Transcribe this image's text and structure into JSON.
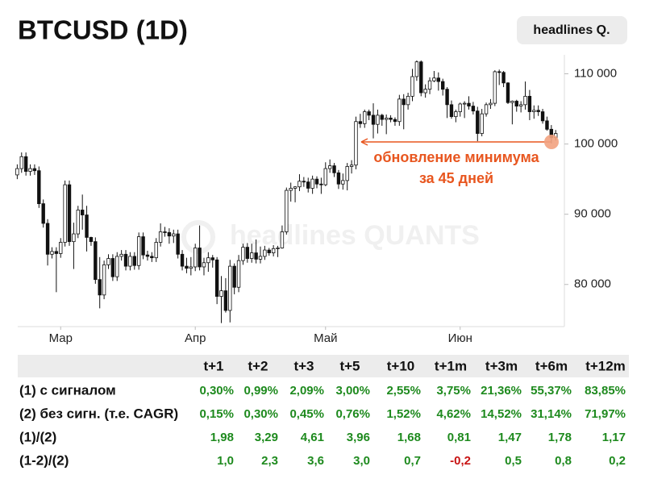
{
  "chart_data": {
    "type": "candlestick",
    "title": "BTCUSD (1D)",
    "badge": "headlines Q.",
    "watermark": "headlines QUANTS",
    "annotation": [
      "обновление минимума",
      "за 45 дней"
    ],
    "annotation_color": "#e8561f",
    "up_color": "#ffffff",
    "down_color": "#111111",
    "xlim": [
      -1,
      126
    ],
    "xticks": [
      {
        "value": 10,
        "label": "Мар"
      },
      {
        "value": 41,
        "label": "Апр"
      },
      {
        "value": 71,
        "label": "Май"
      },
      {
        "value": 102,
        "label": "Июн"
      }
    ],
    "ylim": [
      74000,
      112700
    ],
    "yticks": [
      {
        "value": 80000,
        "label": "80 000"
      },
      {
        "value": 90000,
        "label": "90 000"
      },
      {
        "value": 100000,
        "label": "100 000"
      },
      {
        "value": 110000,
        "label": "110 000"
      }
    ],
    "candles": [
      [
        95600,
        97100,
        95000,
        96500
      ],
      [
        96500,
        98800,
        95900,
        98200
      ],
      [
        98200,
        98800,
        95500,
        96100
      ],
      [
        96100,
        97100,
        95500,
        96500
      ],
      [
        96500,
        97100,
        95600,
        96200
      ],
      [
        96200,
        96800,
        90900,
        91500
      ],
      [
        91500,
        92100,
        88100,
        88700
      ],
      [
        88700,
        89300,
        82700,
        84300
      ],
      [
        84300,
        85300,
        83700,
        84700
      ],
      [
        84700,
        85300,
        78900,
        84400
      ],
      [
        84400,
        86600,
        83800,
        86000
      ],
      [
        86000,
        94800,
        85400,
        94200
      ],
      [
        94200,
        94800,
        85500,
        86100
      ],
      [
        86100,
        88800,
        82200,
        87200
      ],
      [
        87200,
        91200,
        86600,
        90600
      ],
      [
        90600,
        92800,
        87800,
        89900
      ],
      [
        89900,
        91200,
        84700,
        86700
      ],
      [
        86700,
        86800,
        85500,
        86100
      ],
      [
        86100,
        86700,
        80100,
        80700
      ],
      [
        80700,
        83900,
        76600,
        78500
      ],
      [
        78500,
        83400,
        77900,
        82800
      ],
      [
        82800,
        84300,
        82200,
        83700
      ],
      [
        83700,
        84300,
        80500,
        81100
      ],
      [
        81100,
        84600,
        80500,
        84000
      ],
      [
        84000,
        84900,
        83400,
        84300
      ],
      [
        84300,
        84900,
        82000,
        82600
      ],
      [
        82600,
        84600,
        82000,
        84000
      ],
      [
        84000,
        84600,
        82100,
        82700
      ],
      [
        82700,
        87400,
        82100,
        86800
      ],
      [
        86800,
        87400,
        83600,
        84200
      ],
      [
        84200,
        84800,
        83400,
        84000
      ],
      [
        84000,
        84600,
        83200,
        83800
      ],
      [
        83800,
        86600,
        83200,
        86000
      ],
      [
        86000,
        88700,
        85400,
        87500
      ],
      [
        87500,
        88200,
        86800,
        87400
      ],
      [
        87400,
        88000,
        85800,
        86900
      ],
      [
        86900,
        87800,
        85900,
        87200
      ],
      [
        87200,
        87800,
        83700,
        84300
      ],
      [
        84300,
        84900,
        82000,
        82600
      ],
      [
        82600,
        83800,
        81600,
        82300
      ],
      [
        82300,
        83900,
        81300,
        82500
      ],
      [
        82500,
        85800,
        81900,
        85200
      ],
      [
        85200,
        88400,
        82000,
        82500
      ],
      [
        82500,
        83800,
        81300,
        83100
      ],
      [
        83100,
        84600,
        81800,
        83800
      ],
      [
        83800,
        84200,
        82400,
        83500
      ],
      [
        83500,
        83900,
        77200,
        78300
      ],
      [
        78300,
        81200,
        74500,
        79100
      ],
      [
        79100,
        80900,
        76000,
        76300
      ],
      [
        76300,
        83500,
        74600,
        82600
      ],
      [
        82600,
        83000,
        78600,
        79600
      ],
      [
        79600,
        84200,
        78900,
        83400
      ],
      [
        83400,
        85800,
        82800,
        85300
      ],
      [
        85300,
        85900,
        83100,
        83700
      ],
      [
        83700,
        85800,
        83100,
        84500
      ],
      [
        84500,
        86400,
        83000,
        83600
      ],
      [
        83600,
        85400,
        83000,
        84000
      ],
      [
        84000,
        85500,
        83500,
        84900
      ],
      [
        84900,
        85200,
        84100,
        84500
      ],
      [
        84500,
        85600,
        84000,
        85100
      ],
      [
        85100,
        85500,
        83900,
        85200
      ],
      [
        85200,
        88400,
        85100,
        87500
      ],
      [
        87500,
        93800,
        87100,
        93400
      ],
      [
        93400,
        94500,
        91800,
        93700
      ],
      [
        93700,
        94000,
        91700,
        93900
      ],
      [
        93900,
        95700,
        93300,
        94700
      ],
      [
        94700,
        95300,
        93900,
        94600
      ],
      [
        94600,
        95200,
        93100,
        93700
      ],
      [
        93700,
        95500,
        92900,
        95000
      ],
      [
        95000,
        95400,
        93700,
        94300
      ],
      [
        94300,
        95200,
        92900,
        94200
      ],
      [
        94200,
        97400,
        94000,
        96500
      ],
      [
        96500,
        97800,
        95900,
        96900
      ],
      [
        96900,
        97300,
        95300,
        95900
      ],
      [
        95900,
        96300,
        93600,
        94300
      ],
      [
        94300,
        95800,
        93500,
        94800
      ],
      [
        94800,
        97300,
        93400,
        96800
      ],
      [
        96800,
        97700,
        95800,
        97000
      ],
      [
        97000,
        103900,
        96400,
        103200
      ],
      [
        103200,
        104300,
        102300,
        102900
      ],
      [
        102900,
        104900,
        102300,
        104600
      ],
      [
        104600,
        104900,
        103400,
        104100
      ],
      [
        104100,
        105800,
        100800,
        102800
      ],
      [
        102800,
        104900,
        101500,
        104100
      ],
      [
        104100,
        104300,
        102600,
        103500
      ],
      [
        103500,
        104200,
        101400,
        103700
      ],
      [
        103700,
        104100,
        103100,
        103500
      ],
      [
        103500,
        103800,
        102600,
        103200
      ],
      [
        103200,
        107000,
        102600,
        106400
      ],
      [
        106400,
        107100,
        102100,
        105600
      ],
      [
        105600,
        107300,
        104900,
        106800
      ],
      [
        106800,
        110700,
        106100,
        109600
      ],
      [
        109600,
        111900,
        109000,
        111700
      ],
      [
        111700,
        111900,
        106800,
        107300
      ],
      [
        107300,
        108500,
        106600,
        107800
      ],
      [
        107800,
        109500,
        107100,
        109000
      ],
      [
        109000,
        110400,
        108800,
        109400
      ],
      [
        109400,
        110200,
        107600,
        108900
      ],
      [
        108900,
        109300,
        106900,
        107800
      ],
      [
        107800,
        108100,
        103700,
        105600
      ],
      [
        105600,
        106200,
        103600,
        103900
      ],
      [
        103900,
        104900,
        103100,
        104600
      ],
      [
        104600,
        105900,
        103900,
        105700
      ],
      [
        105700,
        106100,
        103700,
        105800
      ],
      [
        105800,
        106800,
        104900,
        105400
      ],
      [
        105400,
        106000,
        104200,
        104700
      ],
      [
        104700,
        105300,
        100400,
        101500
      ],
      [
        101500,
        105000,
        101100,
        104300
      ],
      [
        104300,
        105900,
        103900,
        105600
      ],
      [
        105600,
        106400,
        105000,
        105800
      ],
      [
        105800,
        110500,
        105400,
        110300
      ],
      [
        110300,
        110600,
        108400,
        110200
      ],
      [
        110200,
        110400,
        108100,
        108700
      ],
      [
        108700,
        108800,
        105700,
        105900
      ],
      [
        105900,
        106200,
        102800,
        106100
      ],
      [
        106100,
        106300,
        104600,
        105400
      ],
      [
        105400,
        106100,
        104500,
        105600
      ],
      [
        105600,
        108900,
        104900,
        106800
      ],
      [
        106800,
        107700,
        103400,
        104600
      ],
      [
        104600,
        105500,
        103600,
        104800
      ],
      [
        104800,
        105500,
        104000,
        104600
      ],
      [
        104600,
        105000,
        102900,
        103300
      ],
      [
        103300,
        103900,
        101900,
        102100
      ],
      [
        102100,
        102700,
        100100,
        100900
      ],
      [
        100900,
        102000,
        100500,
        101500
      ]
    ]
  },
  "table": {
    "columns": [
      "t+1",
      "t+2",
      "t+3",
      "t+5",
      "t+10",
      "t+1m",
      "t+3m",
      "t+6m",
      "t+12m"
    ],
    "positive_color": "#1e8a1e",
    "negative_color": "#c81414",
    "rows": [
      {
        "label": "(1) с сигналом",
        "cells": [
          "0,30%",
          "0,99%",
          "2,09%",
          "3,00%",
          "2,55%",
          "3,75%",
          "21,36%",
          "55,37%",
          "83,85%"
        ]
      },
      {
        "label": "(2) без сигн. (т.е. CAGR)",
        "cells": [
          "0,15%",
          "0,30%",
          "0,45%",
          "0,76%",
          "1,52%",
          "4,62%",
          "14,52%",
          "31,14%",
          "71,97%"
        ]
      },
      {
        "label": "(1)/(2)",
        "cells": [
          "1,98",
          "3,29",
          "4,61",
          "3,96",
          "1,68",
          "0,81",
          "1,47",
          "1,78",
          "1,17"
        ]
      },
      {
        "label": "(1-2)/(2)",
        "cells": [
          "1,0",
          "2,3",
          "3,6",
          "3,0",
          "0,7",
          "-0,2",
          "0,5",
          "0,8",
          "0,2"
        ]
      }
    ]
  }
}
